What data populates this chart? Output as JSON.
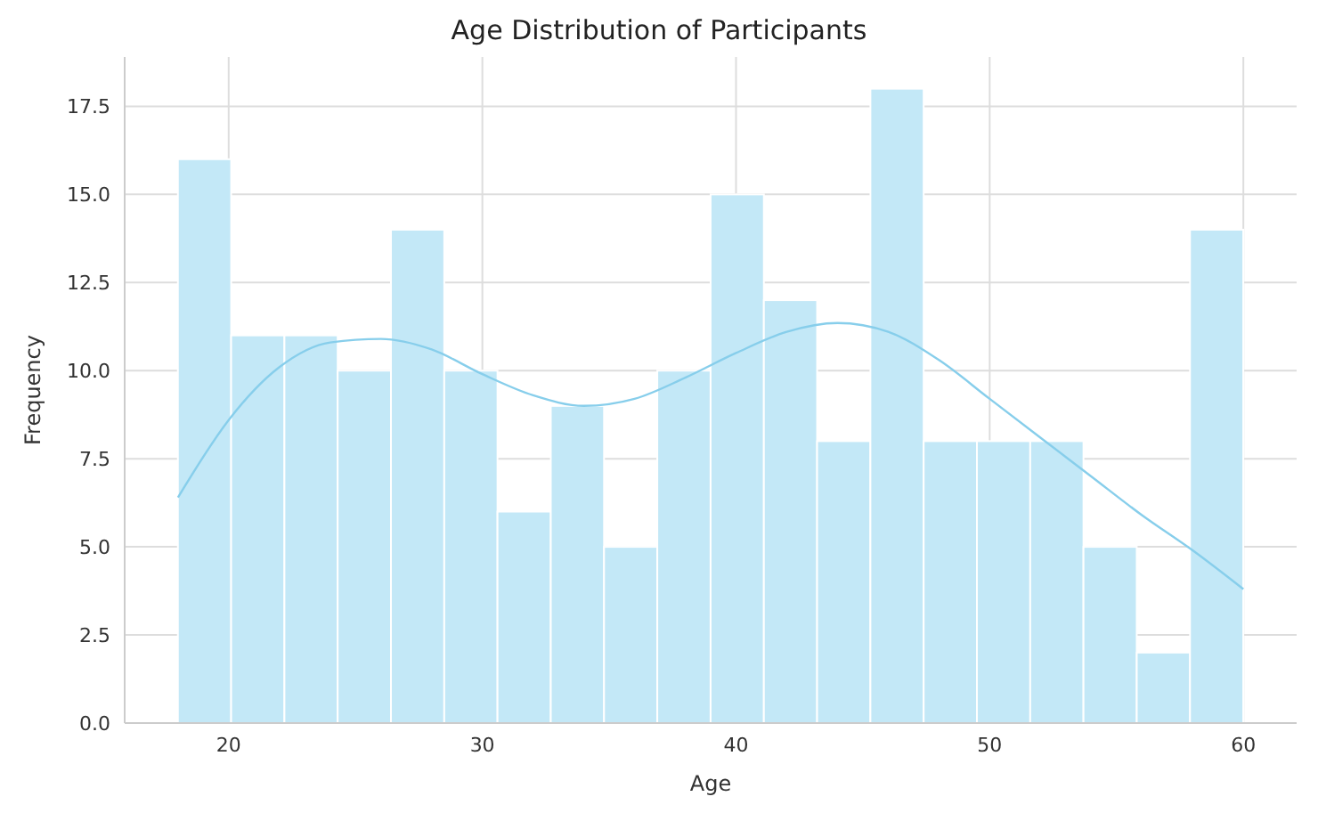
{
  "chart_data": {
    "type": "histogram",
    "title": "Age Distribution of Participants",
    "xlabel": "Age",
    "ylabel": "Frequency",
    "bins": [
      18,
      20.1,
      22.2,
      24.3,
      26.4,
      28.5,
      30.6,
      32.7,
      34.8,
      36.9,
      39,
      41.1,
      43.2,
      45.3,
      47.4,
      49.5,
      51.6,
      53.7,
      55.8,
      57.9,
      60
    ],
    "values": [
      16,
      11,
      11,
      10,
      14,
      10,
      6,
      9,
      5,
      10,
      15,
      12,
      8,
      18,
      8,
      8,
      8,
      5,
      2,
      14
    ],
    "color": "#c3e8f7",
    "series": [
      {
        "type": "line",
        "color": "#87ceeb",
        "x": [
          18,
          20,
          22,
          24,
          26,
          28,
          30,
          32,
          34,
          36,
          38,
          40,
          42,
          44,
          46,
          48,
          50,
          52,
          54,
          56,
          58,
          60
        ],
        "values": [
          6.4,
          8.6,
          10.1,
          10.8,
          10.9,
          10.6,
          9.9,
          9.3,
          9.0,
          9.2,
          9.8,
          10.5,
          11.1,
          11.35,
          11.1,
          10.3,
          9.2,
          8.1,
          7.0,
          5.9,
          4.9,
          3.8
        ]
      }
    ],
    "xlim": [
      15.9,
      62.1
    ],
    "ylim": [
      0,
      18.9
    ],
    "xticks": [
      20,
      30,
      40,
      50,
      60
    ],
    "yticks": [
      {
        "value": 0,
        "label": "0.0"
      },
      {
        "value": 2.5,
        "label": "2.5"
      },
      {
        "value": 5,
        "label": "5.0"
      },
      {
        "value": 7.5,
        "label": "7.5"
      },
      {
        "value": 10,
        "label": "10.0"
      },
      {
        "value": 12.5,
        "label": "12.5"
      },
      {
        "value": 15,
        "label": "15.0"
      },
      {
        "value": 17.5,
        "label": "17.5"
      }
    ],
    "grid": true
  }
}
